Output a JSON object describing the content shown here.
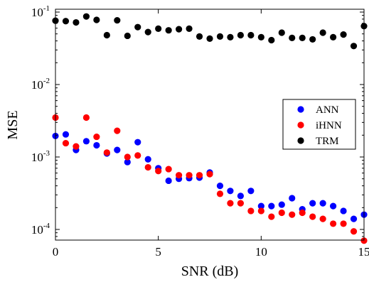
{
  "chart_data": {
    "type": "scatter",
    "xlabel": "SNR (dB)",
    "ylabel": "MSE",
    "xlim": [
      0,
      15
    ],
    "ylim": [
      7e-05,
      0.1
    ],
    "yscale": "log",
    "grid": false,
    "legend_position": "right",
    "x_ticks": [
      {
        "value": 0,
        "label": "0"
      },
      {
        "value": 5,
        "label": "5"
      },
      {
        "value": 10,
        "label": "10"
      },
      {
        "value": 15,
        "label": "15"
      }
    ],
    "y_ticks": [
      {
        "value": 0.1,
        "base": "10",
        "exp": "-1"
      },
      {
        "value": 0.01,
        "base": "10",
        "exp": "-2"
      },
      {
        "value": 0.001,
        "base": "10",
        "exp": "-3"
      },
      {
        "value": 0.0001,
        "base": "10",
        "exp": "-4"
      }
    ],
    "series": [
      {
        "name": "ANN",
        "color": "#0000ff",
        "points": [
          [
            0,
            0.00195
          ],
          [
            0.5,
            0.00205
          ],
          [
            1,
            0.00125
          ],
          [
            1.5,
            0.00165
          ],
          [
            2,
            0.00145
          ],
          [
            2.5,
            0.00112
          ],
          [
            3,
            0.00125
          ],
          [
            3.5,
            0.00085
          ],
          [
            4,
            0.0016
          ],
          [
            4.5,
            0.00093
          ],
          [
            5,
            0.0007
          ],
          [
            5.5,
            0.00047
          ],
          [
            6,
            0.0005
          ],
          [
            6.5,
            0.00051
          ],
          [
            7,
            0.00052
          ],
          [
            7.5,
            0.00061
          ],
          [
            8,
            0.0004
          ],
          [
            8.5,
            0.00034
          ],
          [
            9,
            0.00029
          ],
          [
            9.5,
            0.00034
          ],
          [
            10,
            0.00021
          ],
          [
            10.5,
            0.00021
          ],
          [
            11,
            0.00022
          ],
          [
            11.5,
            0.00027
          ],
          [
            12,
            0.00019
          ],
          [
            12.5,
            0.00023
          ],
          [
            13,
            0.00023
          ],
          [
            13.5,
            0.00021
          ],
          [
            14,
            0.00018
          ],
          [
            14.5,
            0.00014
          ],
          [
            15,
            0.00016
          ]
        ]
      },
      {
        "name": "iHNN",
        "color": "#ff0000",
        "points": [
          [
            0,
            0.0035
          ],
          [
            0.5,
            0.00155
          ],
          [
            1,
            0.0014
          ],
          [
            1.5,
            0.0035
          ],
          [
            2,
            0.0019
          ],
          [
            2.5,
            0.00115
          ],
          [
            3,
            0.0023
          ],
          [
            3.5,
            0.001
          ],
          [
            4,
            0.00105
          ],
          [
            4.5,
            0.00072
          ],
          [
            5,
            0.00064
          ],
          [
            5.5,
            0.00068
          ],
          [
            6,
            0.00056
          ],
          [
            6.5,
            0.00056
          ],
          [
            7,
            0.00056
          ],
          [
            7.5,
            0.00058
          ],
          [
            8,
            0.00031
          ],
          [
            8.5,
            0.00023
          ],
          [
            9,
            0.00023
          ],
          [
            9.5,
            0.00018
          ],
          [
            10,
            0.00018
          ],
          [
            10.5,
            0.00015
          ],
          [
            11,
            0.00017
          ],
          [
            11.5,
            0.00016
          ],
          [
            12,
            0.00017
          ],
          [
            12.5,
            0.00015
          ],
          [
            13,
            0.00014
          ],
          [
            13.5,
            0.00012
          ],
          [
            14,
            0.00012
          ],
          [
            14.5,
            9.4e-05
          ],
          [
            15,
            7e-05
          ]
        ]
      },
      {
        "name": "TRM",
        "color": "#000000",
        "points": [
          [
            0,
            0.076
          ],
          [
            0.5,
            0.075
          ],
          [
            1,
            0.072
          ],
          [
            1.5,
            0.087
          ],
          [
            2,
            0.078
          ],
          [
            2.5,
            0.048
          ],
          [
            3,
            0.077
          ],
          [
            3.5,
            0.047
          ],
          [
            4,
            0.062
          ],
          [
            4.5,
            0.053
          ],
          [
            5,
            0.059
          ],
          [
            5.5,
            0.056
          ],
          [
            6,
            0.058
          ],
          [
            6.5,
            0.059
          ],
          [
            7,
            0.046
          ],
          [
            7.5,
            0.043
          ],
          [
            8,
            0.046
          ],
          [
            8.5,
            0.045
          ],
          [
            9,
            0.048
          ],
          [
            9.5,
            0.048
          ],
          [
            10,
            0.045
          ],
          [
            10.5,
            0.041
          ],
          [
            11,
            0.052
          ],
          [
            11.5,
            0.044
          ],
          [
            12,
            0.044
          ],
          [
            12.5,
            0.042
          ],
          [
            13,
            0.052
          ],
          [
            13.5,
            0.045
          ],
          [
            14,
            0.049
          ],
          [
            14.5,
            0.034
          ],
          [
            15,
            0.064
          ]
        ]
      }
    ]
  }
}
